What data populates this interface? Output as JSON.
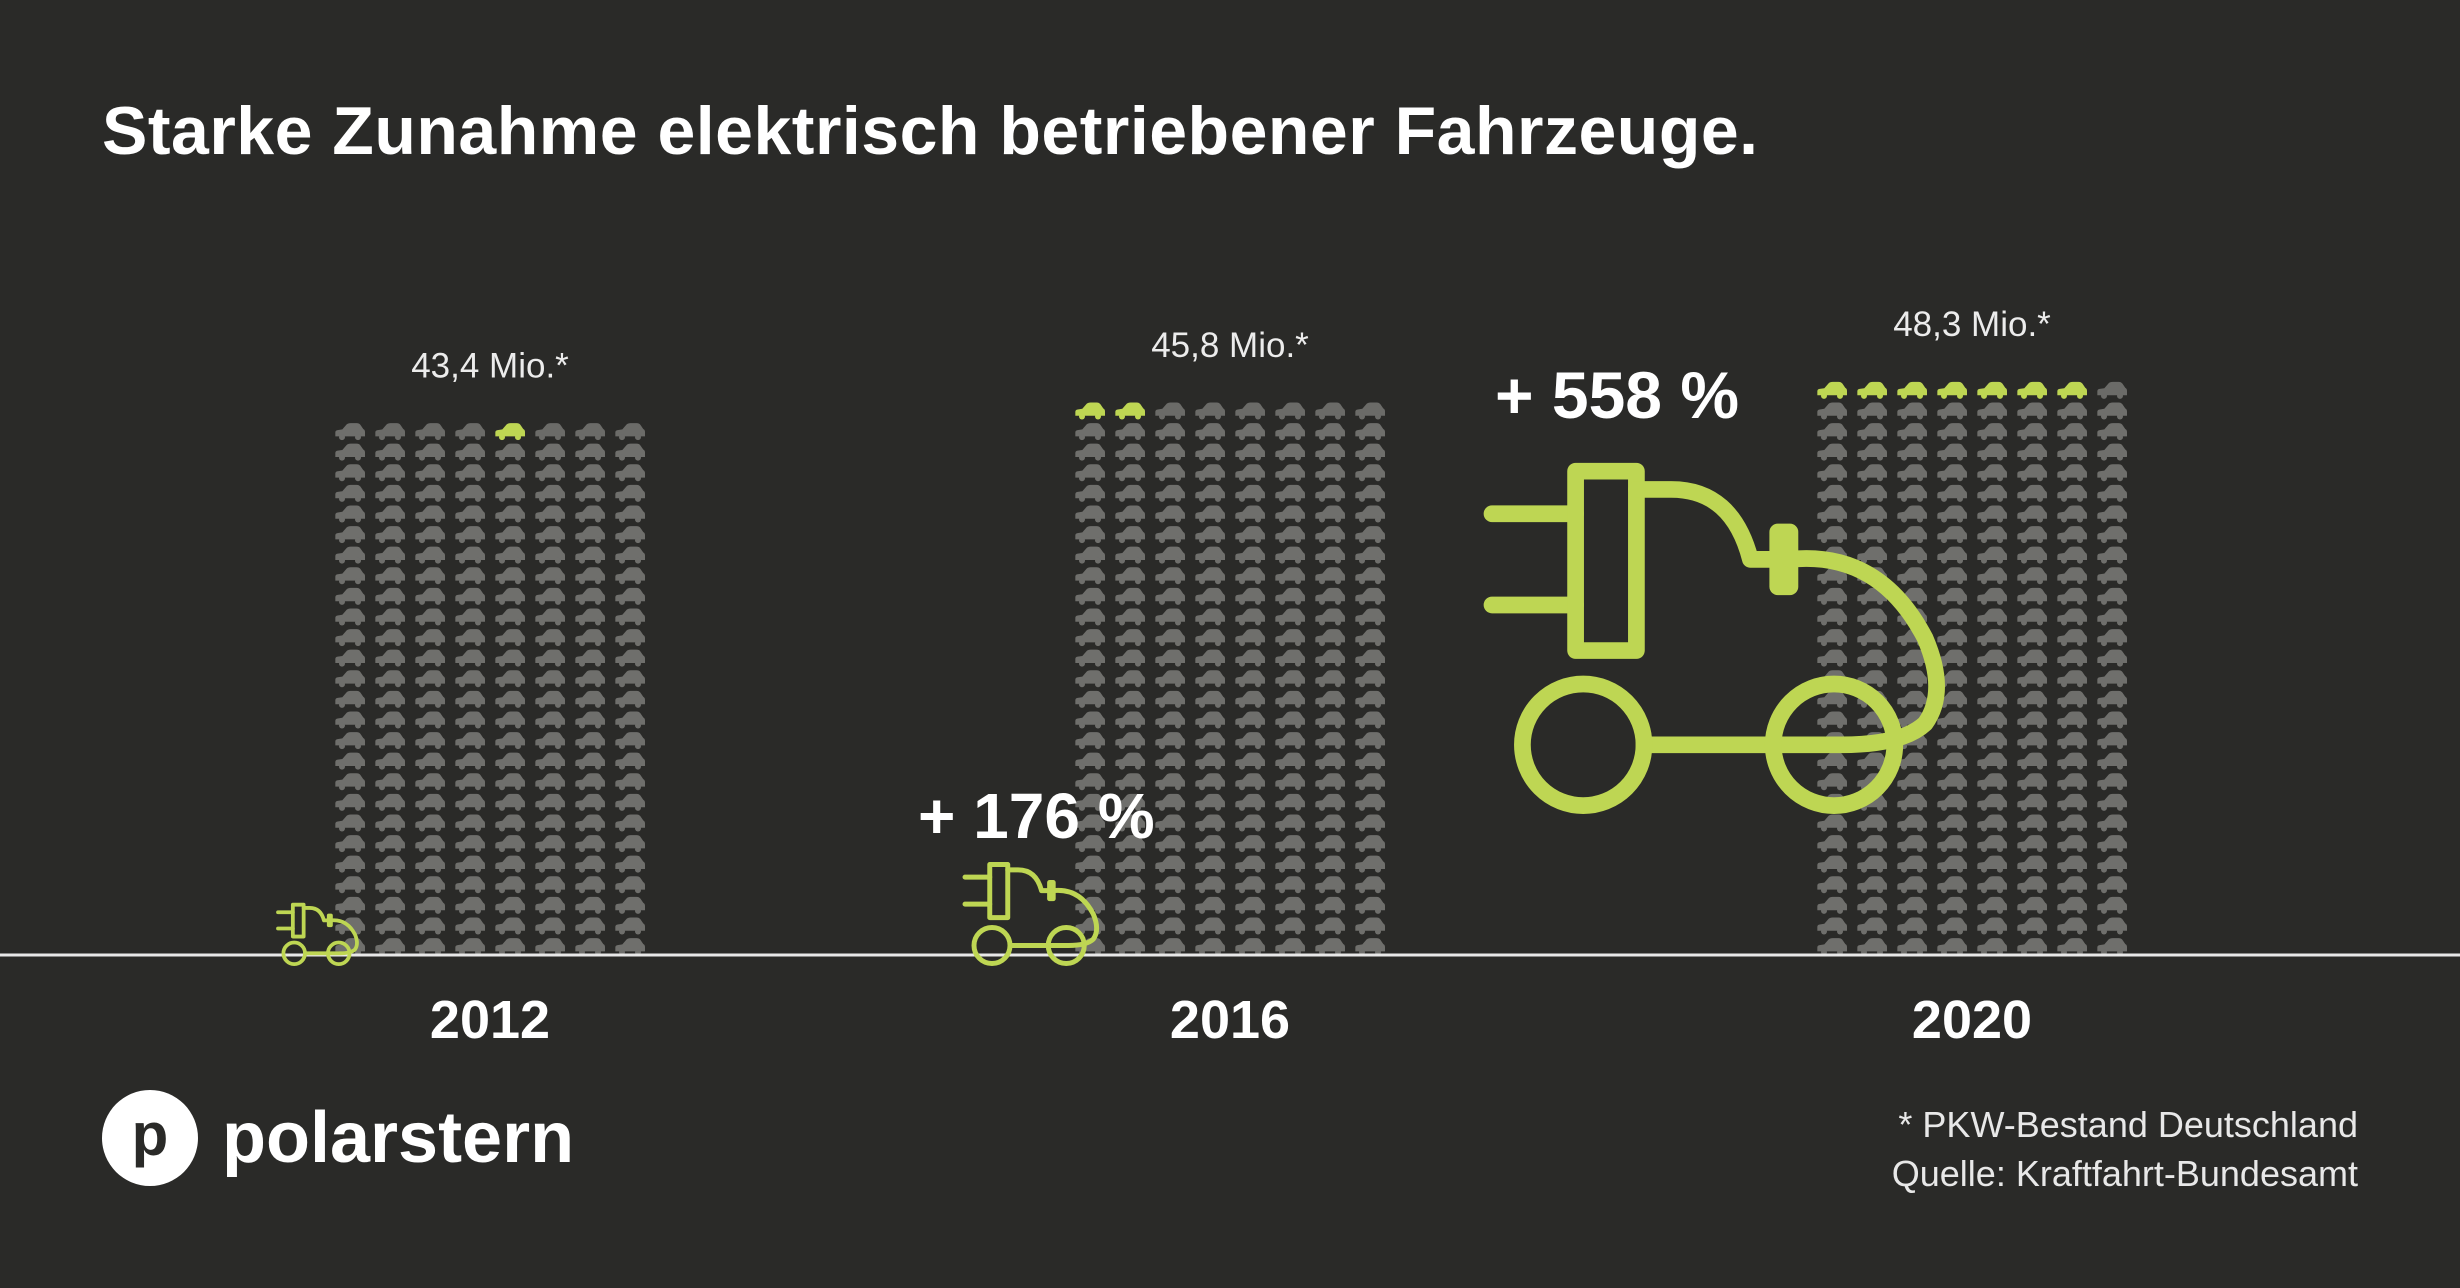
{
  "title": "Starke Zunahme elektrisch betriebener Fahrzeuge.",
  "logo": {
    "badge": "p",
    "name": "polarstern"
  },
  "footnote": {
    "line1": "* PKW-Bestand Deutschland",
    "line2": "Quelle: Kraftfahrt-Bundesamt"
  },
  "colors": {
    "background": "#2a2a28",
    "accent": "#bed653",
    "car_gray": "#6f6f6c",
    "text": "#ffffff",
    "baseline": "#e8e8e8"
  },
  "icons": {
    "car": "car-icon",
    "plug_car": "electric-car-plug-icon"
  },
  "chart_data": {
    "type": "bar",
    "title": "Starke Zunahme elektrisch betriebener Fahrzeuge.",
    "categories": [
      "2012",
      "2016",
      "2020"
    ],
    "series": [
      {
        "values": [
          43.4,
          45.8,
          48.3
        ]
      }
    ],
    "value_labels": [
      "43,4 Mio.*",
      "45,8 Mio.*",
      "48,3 Mio.*"
    ],
    "electric_car_icons": [
      1,
      2,
      7
    ],
    "growth_labels": [
      "",
      "+ 176 %",
      "+ 558 %"
    ],
    "ylim": [
      0,
      48.3
    ]
  }
}
